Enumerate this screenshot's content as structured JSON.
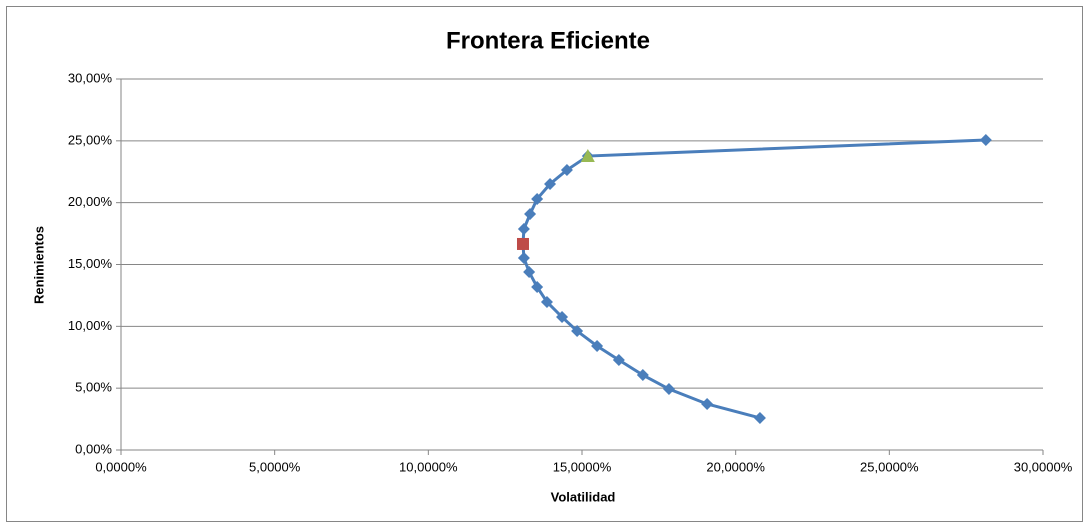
{
  "chart_data": {
    "type": "scatter-line",
    "title": "Frontera Eficiente",
    "xlabel": "Volatilidad",
    "ylabel": "Renimientos",
    "xlim": [
      0,
      30
    ],
    "ylim": [
      0,
      30
    ],
    "xticks": [
      {
        "value": 0,
        "label": "0,0000%"
      },
      {
        "value": 5,
        "label": "5,0000%"
      },
      {
        "value": 10,
        "label": "10,0000%"
      },
      {
        "value": 15,
        "label": "15,0000%"
      },
      {
        "value": 20,
        "label": "20,0000%"
      },
      {
        "value": 25,
        "label": "25,0000%"
      },
      {
        "value": 30,
        "label": "30,0000%"
      }
    ],
    "yticks": [
      {
        "value": 0,
        "label": "0,00%"
      },
      {
        "value": 5,
        "label": "5,00%"
      },
      {
        "value": 10,
        "label": "10,00%"
      },
      {
        "value": 15,
        "label": "15,00%"
      },
      {
        "value": 20,
        "label": "20,00%"
      },
      {
        "value": 25,
        "label": "25,00%"
      },
      {
        "value": 30,
        "label": "30,00%"
      }
    ],
    "grid": true,
    "series": [
      {
        "color": "#4a7ebb",
        "marker": "diamond",
        "line": true,
        "x": [
          20.79,
          19.07,
          17.83,
          16.98,
          16.2,
          15.49,
          14.84,
          14.35,
          13.86,
          13.54,
          13.28,
          13.11,
          13.08,
          13.11,
          13.31,
          13.54,
          13.96,
          14.51,
          15.19,
          28.14
        ],
        "values": [
          2.59,
          3.72,
          4.93,
          6.06,
          7.28,
          8.41,
          9.62,
          10.75,
          11.97,
          13.18,
          14.39,
          15.53,
          16.66,
          17.87,
          19.08,
          20.3,
          21.51,
          22.64,
          23.77,
          25.07
        ]
      },
      {
        "color": "#be4b48",
        "marker": "square",
        "line": false,
        "x": [
          13.08
        ],
        "values": [
          16.66
        ]
      },
      {
        "color": "#98b954",
        "marker": "triangle",
        "line": false,
        "x": [
          15.19
        ],
        "values": [
          23.77
        ]
      }
    ]
  }
}
